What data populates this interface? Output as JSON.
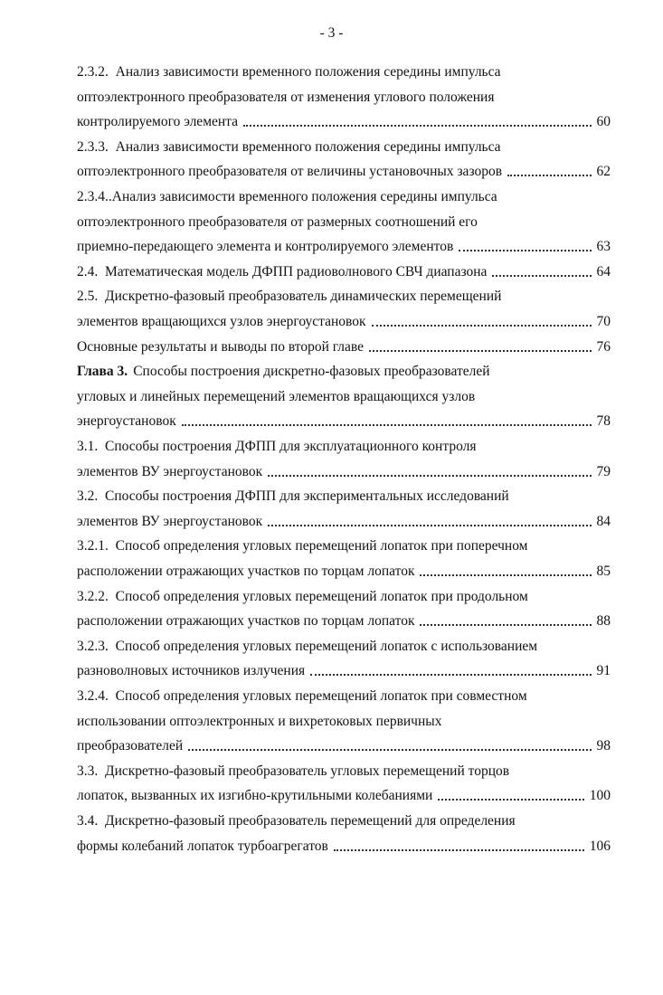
{
  "page_number": "- 3 -",
  "entries": [
    {
      "lines": [
        "2.3.2.  Анализ зависимости временного положения середины импульса",
        "оптоэлектронного преобразователя от изменения углового положения",
        "контролируемого элемента"
      ],
      "page": "60"
    },
    {
      "lines": [
        "2.3.3.  Анализ зависимости временного положения середины импульса",
        "оптоэлектронного преобразователя от величины установочных зазоров"
      ],
      "page": "62"
    },
    {
      "lines": [
        "2.3.4..Анализ зависимости временного положения середины импульса",
        "оптоэлектронного преобразователя от размерных соотношений его",
        "приемно-передающего элемента и контролируемого элементов"
      ],
      "page": "63"
    },
    {
      "lines": [
        "2.4.  Математическая модель ДФПП радиоволнового СВЧ диапазона"
      ],
      "page": "64"
    },
    {
      "lines": [
        "2.5.  Дискретно-фазовый преобразователь динамических перемещений",
        "элементов вращающихся узлов энергоустановок"
      ],
      "page": "70"
    },
    {
      "lines": [
        "Основные результаты и выводы по второй главе"
      ],
      "page": "76"
    },
    {
      "prefix": "Глава 3.",
      "lines": [
        "Способы построения дискретно-фазовых преобразователей",
        "угловых и линейных перемещений элементов вращающихся узлов",
        "энергоустановок"
      ],
      "page": "78"
    },
    {
      "lines": [
        "3.1.  Способы построения ДФПП для эксплуатационного контроля",
        "элементов ВУ энергоустановок"
      ],
      "page": "79"
    },
    {
      "lines": [
        "3.2.  Способы построения ДФПП для экспериментальных исследований",
        "элементов ВУ энергоустановок"
      ],
      "page": "84"
    },
    {
      "lines": [
        "3.2.1.  Способ определения угловых перемещений лопаток при поперечном",
        "расположении отражающих участков по торцам лопаток"
      ],
      "page": "85"
    },
    {
      "lines": [
        "3.2.2.  Способ определения угловых перемещений лопаток при продольном",
        "расположении отражающих участков по торцам лопаток"
      ],
      "page": "88"
    },
    {
      "lines": [
        "3.2.3.  Способ определения угловых перемещений лопаток с использованием",
        "разноволновых источников излучения"
      ],
      "page": "91"
    },
    {
      "lines": [
        "3.2.4.  Способ определения угловых перемещений лопаток при совместном",
        "использовании оптоэлектронных и вихретоковых первичных",
        "преобразователей"
      ],
      "page": "98"
    },
    {
      "lines": [
        "3.3.  Дискретно-фазовый преобразователь угловых перемещений торцов",
        "лопаток, вызванных их изгибно-крутильными колебаниями"
      ],
      "page": "100"
    },
    {
      "lines": [
        "3.4.  Дискретно-фазовый преобразователь перемещений для определения",
        "формы колебаний лопаток турбоагрегатов"
      ],
      "page": "106"
    }
  ]
}
